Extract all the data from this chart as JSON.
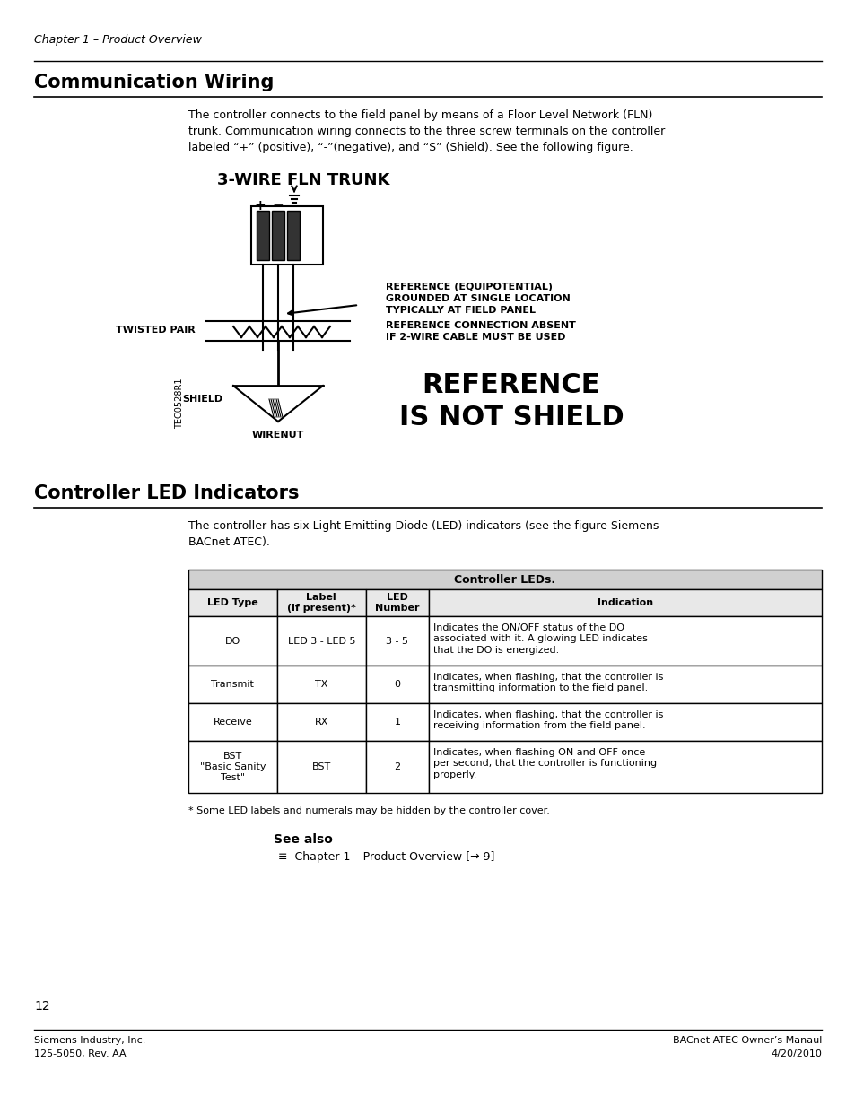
{
  "page_bg": "#ffffff",
  "chapter_header": "Chapter 1 – Product Overview",
  "section1_title": "Communication Wiring",
  "section1_body": "The controller connects to the field panel by means of a Floor Level Network (FLN)\ntrunk. Communication wiring connects to the three screw terminals on the controller\nlabeled “+” (positive), “-”(negative), and “S” (Shield). See the following figure.",
  "diagram_title": "3-WIRE FLN TRUNK",
  "ref_line1": "REFERENCE (EQUIPOTENTIAL)",
  "ref_line2": "GROUNDED AT SINGLE LOCATION",
  "ref_line3": "TYPICALLY AT FIELD PANEL",
  "ref2_line1": "REFERENCE CONNECTION ABSENT",
  "ref2_line2": "IF 2-WIRE CABLE MUST BE USED",
  "big_ref_line1": "REFERENCE",
  "big_ref_line2": "IS NOT SHIELD",
  "label_twisted": "TWISTED PAIR",
  "label_shield": "SHIELD",
  "label_wirenut": "WIRENUT",
  "label_tec": "TEC0528R1",
  "section2_title": "Controller LED Indicators",
  "section2_body": "The controller has six Light Emitting Diode (LED) indicators (see the figure Siemens\nBACnet ATEC).",
  "table_title": "Controller LEDs.",
  "table_headers": [
    "LED Type",
    "Label\n(if present)*",
    "LED\nNumber",
    "Indication"
  ],
  "table_rows": [
    [
      "DO",
      "LED 3 - LED 5",
      "3 - 5",
      "Indicates the ON/OFF status of the DO\nassociated with it. A glowing LED indicates\nthat the DO is energized."
    ],
    [
      "Transmit",
      "TX",
      "0",
      "Indicates, when flashing, that the controller is\ntransmitting information to the field panel."
    ],
    [
      "Receive",
      "RX",
      "1",
      "Indicates, when flashing, that the controller is\nreceiving information from the field panel."
    ],
    [
      "BST\n\"Basic Sanity\nTest\"",
      "BST",
      "2",
      "Indicates, when flashing ON and OFF once\nper second, that the controller is functioning\nproperly."
    ]
  ],
  "footnote": "* Some LED labels and numerals may be hidden by the controller cover.",
  "see_also_title": "See also",
  "see_also_item": "Chapter 1 – Product Overview [→ 9]",
  "page_number": "12",
  "footer_left1": "Siemens Industry, Inc.",
  "footer_left2": "125-5050, Rev. AA",
  "footer_right1": "BACnet ATEC Owner’s Manaul",
  "footer_right2": "4/20/2010"
}
